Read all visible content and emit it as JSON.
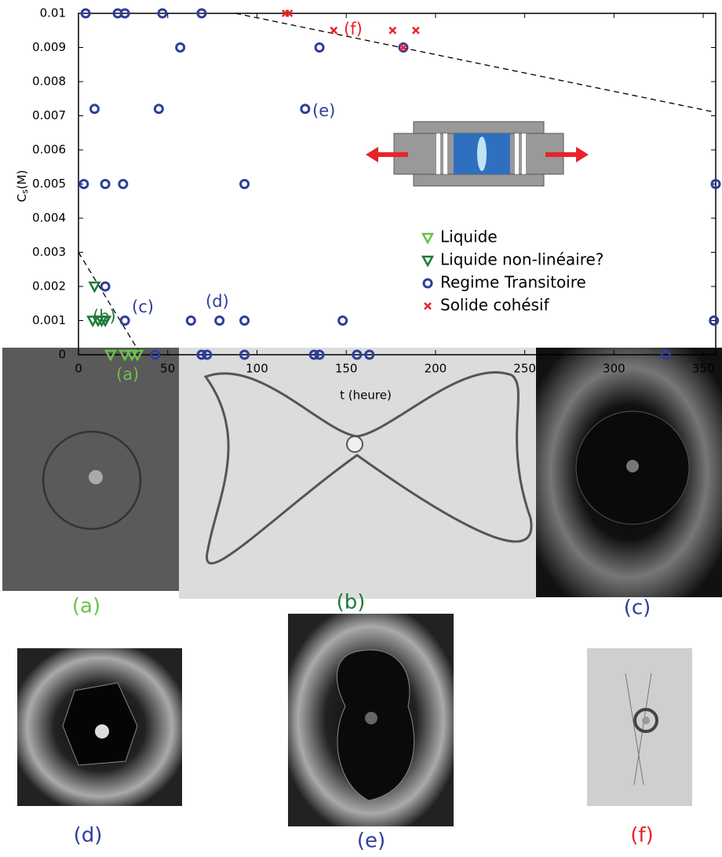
{
  "chart_data": {
    "type": "scatter",
    "xlabel": "t (heure)",
    "ylabel": [
      "C",
      "s",
      "(M)"
    ],
    "xlim": [
      0,
      357
    ],
    "ylim": [
      0,
      0.01
    ],
    "xticks": [
      0,
      50,
      100,
      150,
      200,
      250,
      300,
      350
    ],
    "yticks": [
      0,
      0.001,
      0.002,
      0.003,
      0.004,
      0.005,
      0.006,
      0.007,
      0.008,
      0.009,
      0.01
    ],
    "legend": "lower right",
    "series": [
      {
        "name": "Liquide",
        "color": "#6cc24a",
        "marker": "triangle-down",
        "x": [
          18,
          26,
          30,
          33
        ],
        "values": [
          0,
          0,
          0,
          0
        ]
      },
      {
        "name": "Liquide non-linéaire?",
        "color": "#1f7a3a",
        "marker": "triangle-down",
        "x": [
          9,
          8,
          11,
          13,
          15
        ],
        "values": [
          0.002,
          0.001,
          0.001,
          0.001,
          0.001
        ]
      },
      {
        "name": "Regime Transitoire",
        "color": "#2e3d9c",
        "marker": "circle",
        "x": [
          4,
          22,
          26,
          47,
          69,
          57,
          135,
          182,
          9,
          45,
          127,
          3,
          15,
          25,
          93,
          357,
          15,
          26,
          63,
          79,
          93,
          148,
          356,
          43,
          69,
          72,
          93,
          132,
          135,
          156,
          163,
          329
        ],
        "values": [
          0.01,
          0.01,
          0.01,
          0.01,
          0.01,
          0.009,
          0.009,
          0.009,
          0.0072,
          0.0072,
          0.0072,
          0.005,
          0.005,
          0.005,
          0.005,
          0.005,
          0.002,
          0.001,
          0.001,
          0.001,
          0.001,
          0.001,
          0.001,
          0,
          0,
          0,
          0,
          0,
          0,
          0,
          0,
          0
        ]
      },
      {
        "name": "Solide cohésif",
        "color": "#e8232a",
        "marker": "x",
        "x": [
          116,
          118,
          143,
          176,
          189,
          182
        ],
        "values": [
          0.01,
          0.01,
          0.0095,
          0.0095,
          0.0095,
          0.009
        ]
      }
    ],
    "lines": [
      {
        "x": [
          0,
          35
        ],
        "values": [
          0.003,
          0
        ]
      },
      {
        "x": [
          88,
          357
        ],
        "values": [
          0.01,
          0.0071
        ]
      }
    ],
    "annotations": [
      {
        "text": "(a)",
        "color": "#6cc24a"
      },
      {
        "text": "(b)",
        "color": "#1f7a3a"
      },
      {
        "text": "(c)",
        "color": "#2e3d9c"
      },
      {
        "text": "(d)",
        "color": "#2e3d9c"
      },
      {
        "text": "(e)",
        "color": "#2e3d9c"
      },
      {
        "text": "(f)",
        "color": "#e8232a"
      }
    ]
  },
  "panels": [
    {
      "caption": "(a)",
      "color": "#6cc24a"
    },
    {
      "caption": "(b)",
      "color": "#1f7a3a"
    },
    {
      "caption": "(c)",
      "color": "#2e3d9c"
    },
    {
      "caption": "(d)",
      "color": "#2e3d9c"
    },
    {
      "caption": "(e)",
      "color": "#2e3d9c"
    },
    {
      "caption": "(f)",
      "color": "#e8232a"
    }
  ]
}
